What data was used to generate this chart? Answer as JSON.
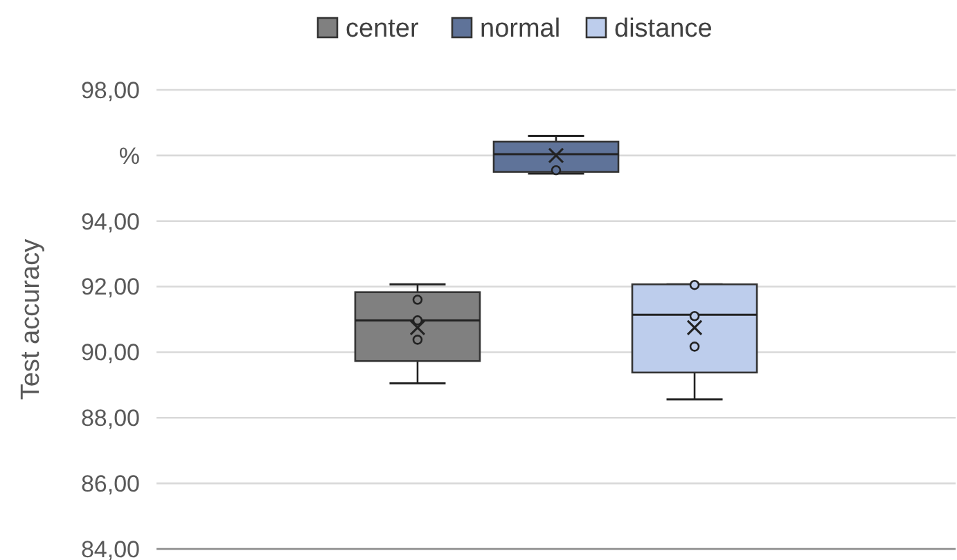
{
  "chart_data": {
    "type": "box",
    "ylabel": "Test accuracy",
    "categories": [
      null
    ],
    "ylim": [
      84,
      98
    ],
    "yticks": [
      {
        "value": 84,
        "label": "84,00"
      },
      {
        "value": 86,
        "label": "86,00"
      },
      {
        "value": 88,
        "label": "88,00"
      },
      {
        "value": 90,
        "label": "90,00"
      },
      {
        "value": 92,
        "label": "92,00"
      },
      {
        "value": 94,
        "label": "94,00"
      },
      {
        "value": 96,
        "label": "%"
      },
      {
        "value": 98,
        "label": "98,00"
      }
    ],
    "grid": "y",
    "legend": "top",
    "marker": "circle",
    "series": [
      {
        "name": "center",
        "color": "#808080",
        "boxes": [
          {
            "low": 89.05,
            "q1": 89.73,
            "median": 90.97,
            "q3": 91.83,
            "high": 92.07,
            "mean": 90.75,
            "outliers": [
              91.6,
              90.97,
              90.38
            ]
          }
        ]
      },
      {
        "name": "normal",
        "color": "#5f7399",
        "boxes": [
          {
            "low": 95.45,
            "q1": 95.5,
            "median": 96.04,
            "q3": 96.42,
            "high": 96.6,
            "mean": 96.0,
            "outliers": [
              95.55
            ]
          }
        ]
      },
      {
        "name": "distance",
        "color": "#bdcdec",
        "boxes": [
          {
            "low": 88.56,
            "q1": 89.38,
            "median": 91.14,
            "q3": 92.07,
            "high": 92.07,
            "mean": 90.75,
            "outliers": [
              92.05,
              91.1,
              90.17
            ]
          }
        ]
      }
    ]
  }
}
